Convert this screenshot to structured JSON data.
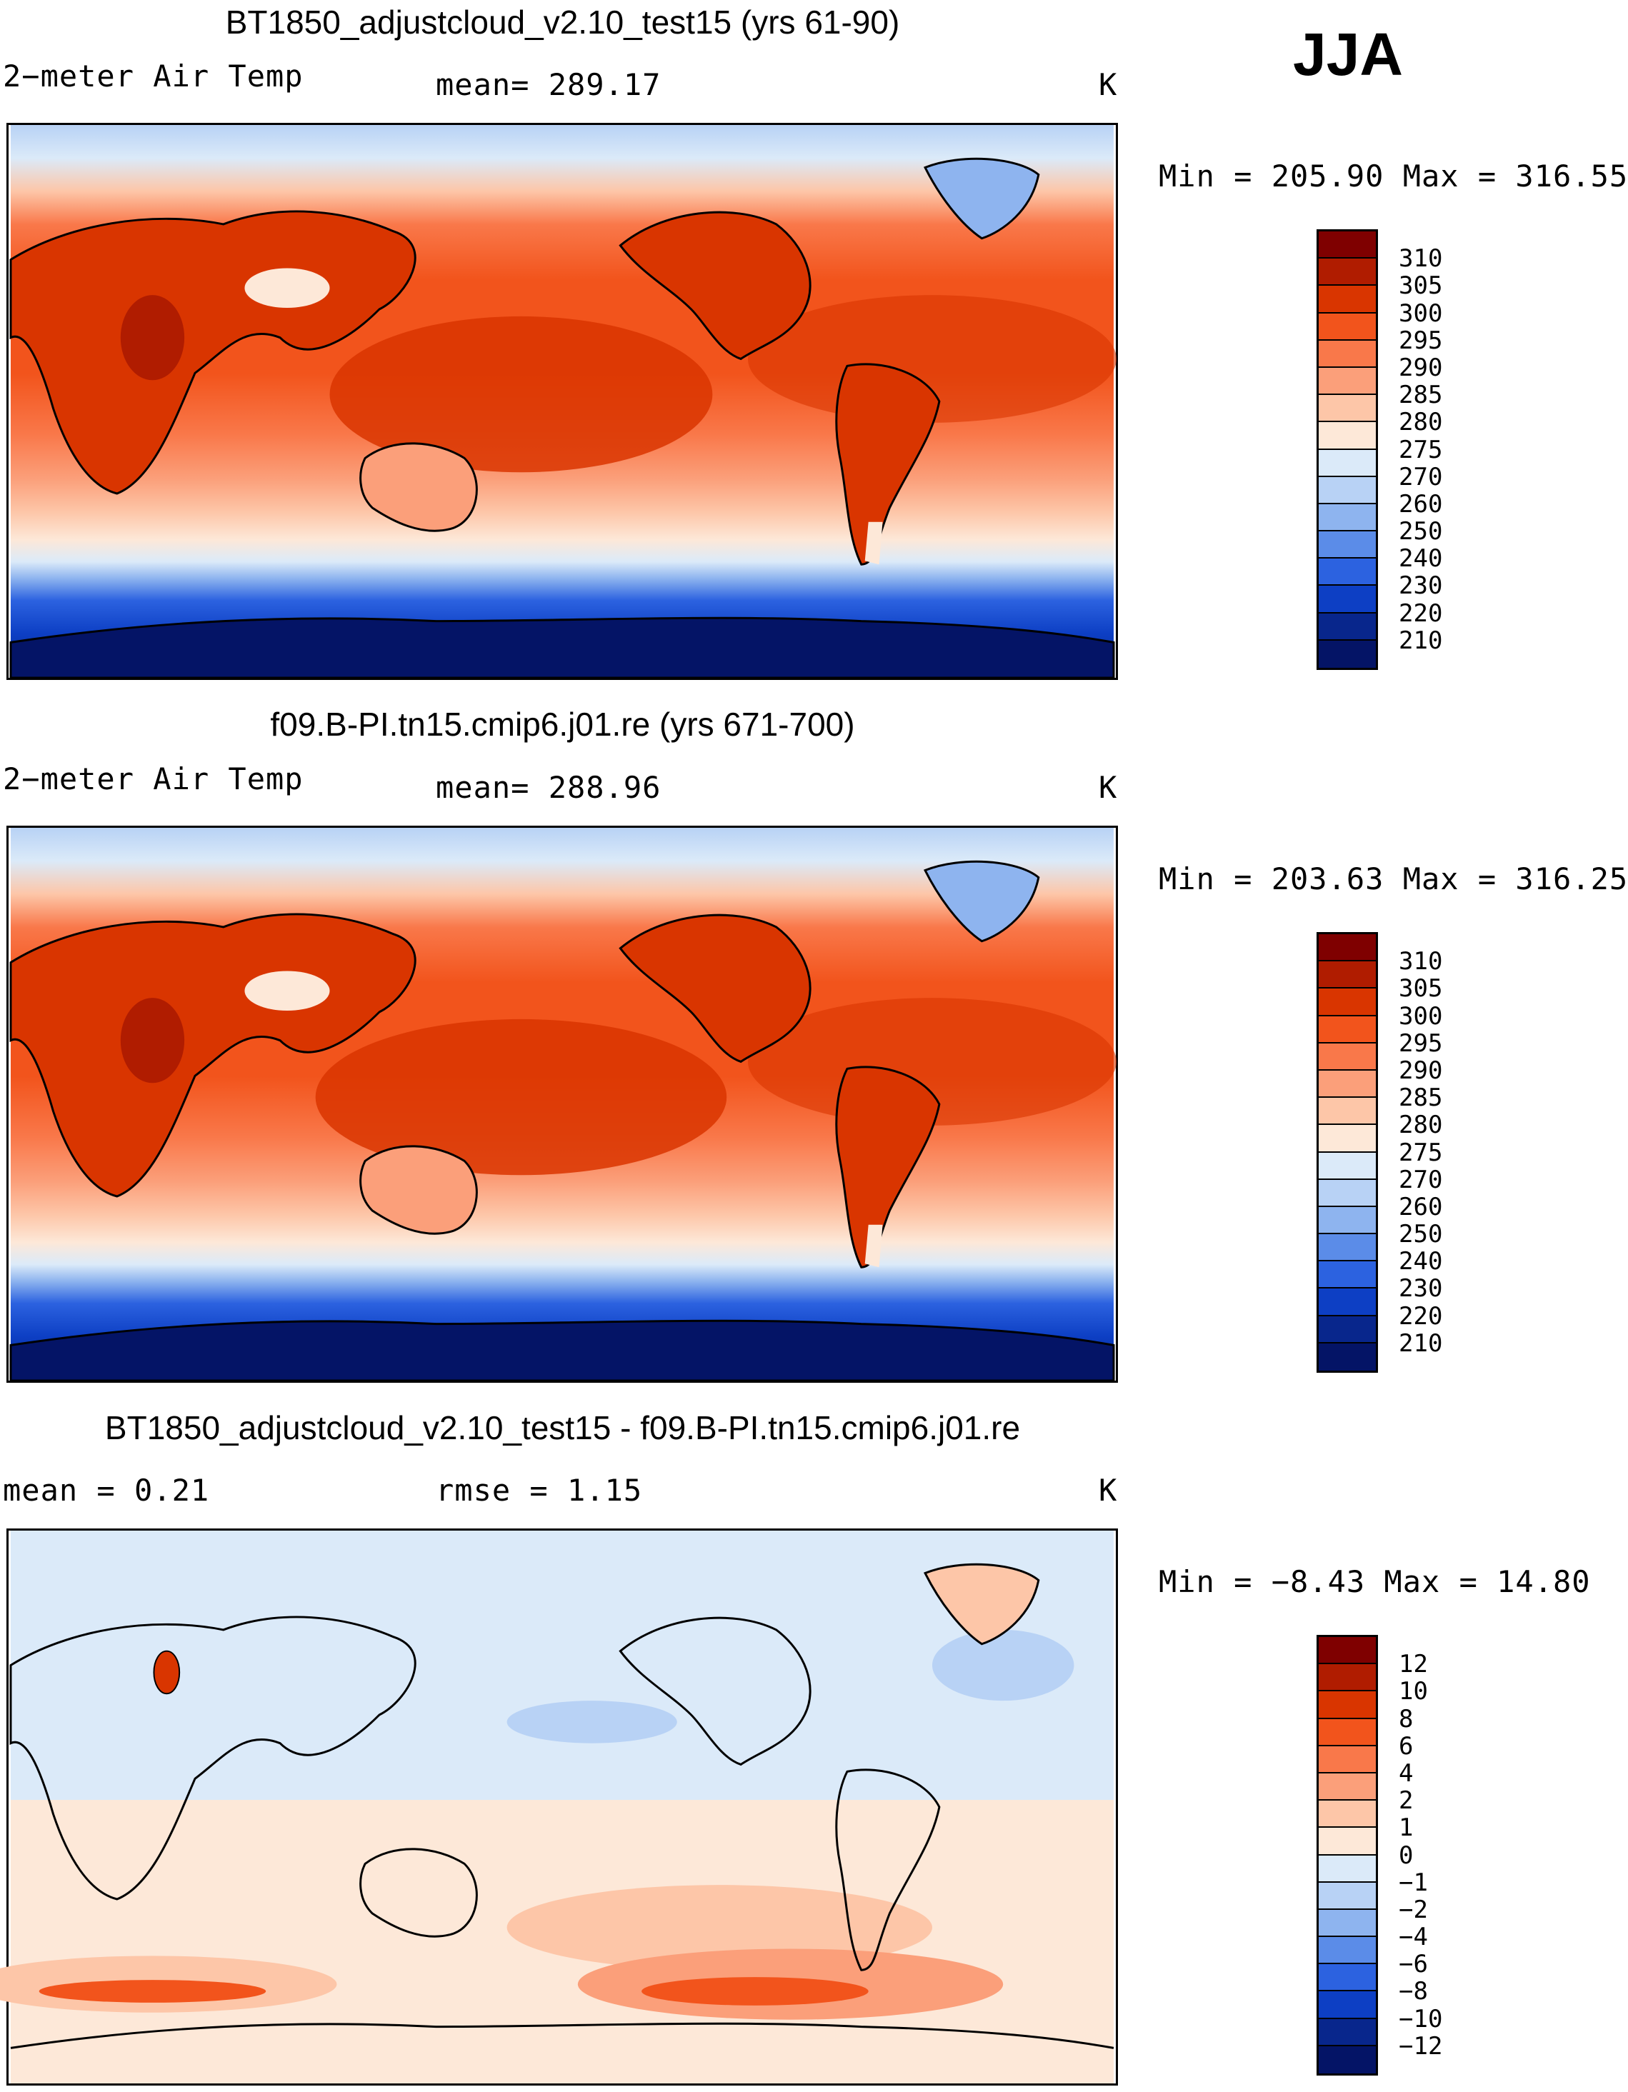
{
  "season": "JJA",
  "panels": [
    {
      "id": "p1",
      "title": "BT1850_adjustcloud_v2.10_test15 (yrs 61-90)",
      "left_label": "2−meter Air Temp",
      "center_label": "mean=  289.17",
      "units": "K",
      "minmax": "Min  =  205.90  Max  =  316.55",
      "colorbar": {
        "labels": [
          "310",
          "305",
          "300",
          "295",
          "290",
          "285",
          "280",
          "275",
          "270",
          "260",
          "250",
          "240",
          "230",
          "220",
          "210"
        ],
        "colors": [
          "#7f0000",
          "#b01c00",
          "#d93500",
          "#f2541c",
          "#f9784a",
          "#fb9f7a",
          "#fdc6a8",
          "#fde8d8",
          "#dbeaf9",
          "#b8d2f5",
          "#8eb4ef",
          "#5b8ce8",
          "#2c62e0",
          "#0d3fc4",
          "#08268c",
          "#041466"
        ]
      },
      "map_style": "absolute"
    },
    {
      "id": "p2",
      "title": "f09.B-PI.tn15.cmip6.j01.re (yrs 671-700)",
      "left_label": "2−meter Air Temp",
      "center_label": "mean=  288.96",
      "units": "K",
      "minmax": "Min  =  203.63  Max  =  316.25",
      "colorbar": {
        "labels": [
          "310",
          "305",
          "300",
          "295",
          "290",
          "285",
          "280",
          "275",
          "270",
          "260",
          "250",
          "240",
          "230",
          "220",
          "210"
        ],
        "colors": [
          "#7f0000",
          "#b01c00",
          "#d93500",
          "#f2541c",
          "#f9784a",
          "#fb9f7a",
          "#fdc6a8",
          "#fde8d8",
          "#dbeaf9",
          "#b8d2f5",
          "#8eb4ef",
          "#5b8ce8",
          "#2c62e0",
          "#0d3fc4",
          "#08268c",
          "#041466"
        ]
      },
      "map_style": "absolute"
    },
    {
      "id": "p3",
      "title": "BT1850_adjustcloud_v2.10_test15 - f09.B-PI.tn15.cmip6.j01.re",
      "left_label": "mean  =     0.21",
      "center_label": "rmse  =     1.15",
      "units": "K",
      "minmax": "Min  =    −8.43  Max  =     14.80",
      "colorbar": {
        "labels": [
          "12",
          "10",
          "8",
          "6",
          "4",
          "2",
          "1",
          "0",
          "−1",
          "−2",
          "−4",
          "−6",
          "−8",
          "−10",
          "−12"
        ],
        "colors": [
          "#7f0000",
          "#b01c00",
          "#d93500",
          "#f2541c",
          "#f9784a",
          "#fb9f7a",
          "#fdc6a8",
          "#fde8d8",
          "#dbeaf9",
          "#b8d2f5",
          "#8eb4ef",
          "#5b8ce8",
          "#2c62e0",
          "#0d3fc4",
          "#08268c",
          "#041466"
        ]
      },
      "map_style": "difference"
    }
  ]
}
